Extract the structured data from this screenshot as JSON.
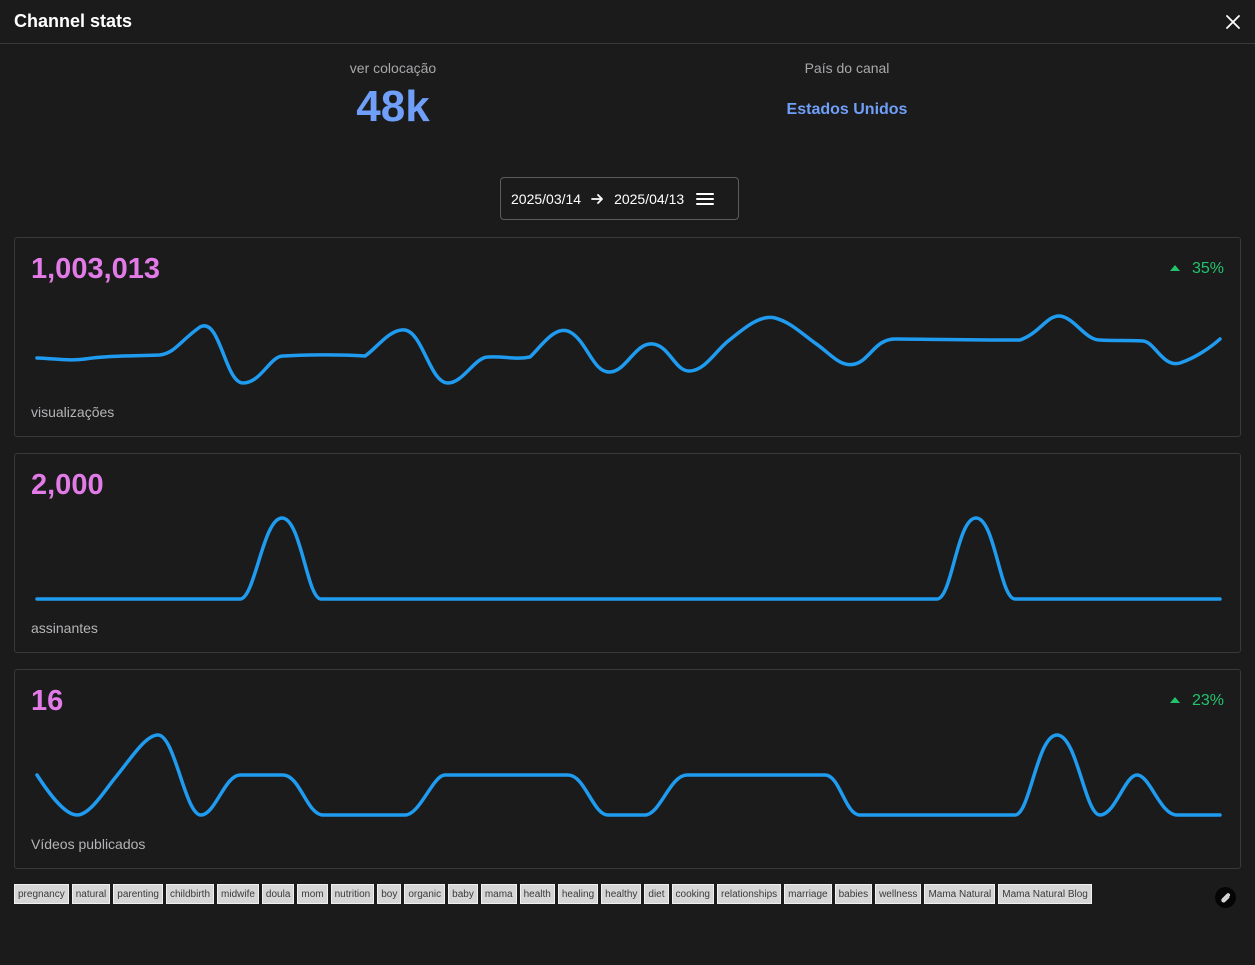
{
  "window": {
    "title": "Channel stats"
  },
  "rank": {
    "label": "ver colocação",
    "value": "48k"
  },
  "country": {
    "label": "País do canal",
    "value": "Estados Unidos"
  },
  "date_range": {
    "start": "2025/03/14",
    "end": "2025/04/13"
  },
  "cards": [
    {
      "value": "1,003,013",
      "caption": "visualizações",
      "change": "35%",
      "trend": "up"
    },
    {
      "value": "2,000",
      "caption": "assinantes"
    },
    {
      "value": "16",
      "caption": "Vídeos publicados",
      "change": "23%",
      "trend": "up"
    }
  ],
  "tags": [
    "pregnancy",
    "natural",
    "parenting",
    "childbirth",
    "midwife",
    "doula",
    "mom",
    "nutrition",
    "boy",
    "organic",
    "baby",
    "mama",
    "health",
    "healing",
    "healthy",
    "diet",
    "cooking",
    "relationships",
    "marriage",
    "babies",
    "wellness",
    "Mama Natural",
    "Mama Natural Blog"
  ],
  "colors": {
    "accent_blue": "#6f9ff8",
    "metric_pink": "#e27ae8",
    "positive_green": "#22c46b",
    "line_blue": "#1f9bf0"
  },
  "icons": {
    "close": "close-icon",
    "arrow": "arrow-right-icon",
    "menu": "menu-icon",
    "link": "paperclip-icon"
  }
}
